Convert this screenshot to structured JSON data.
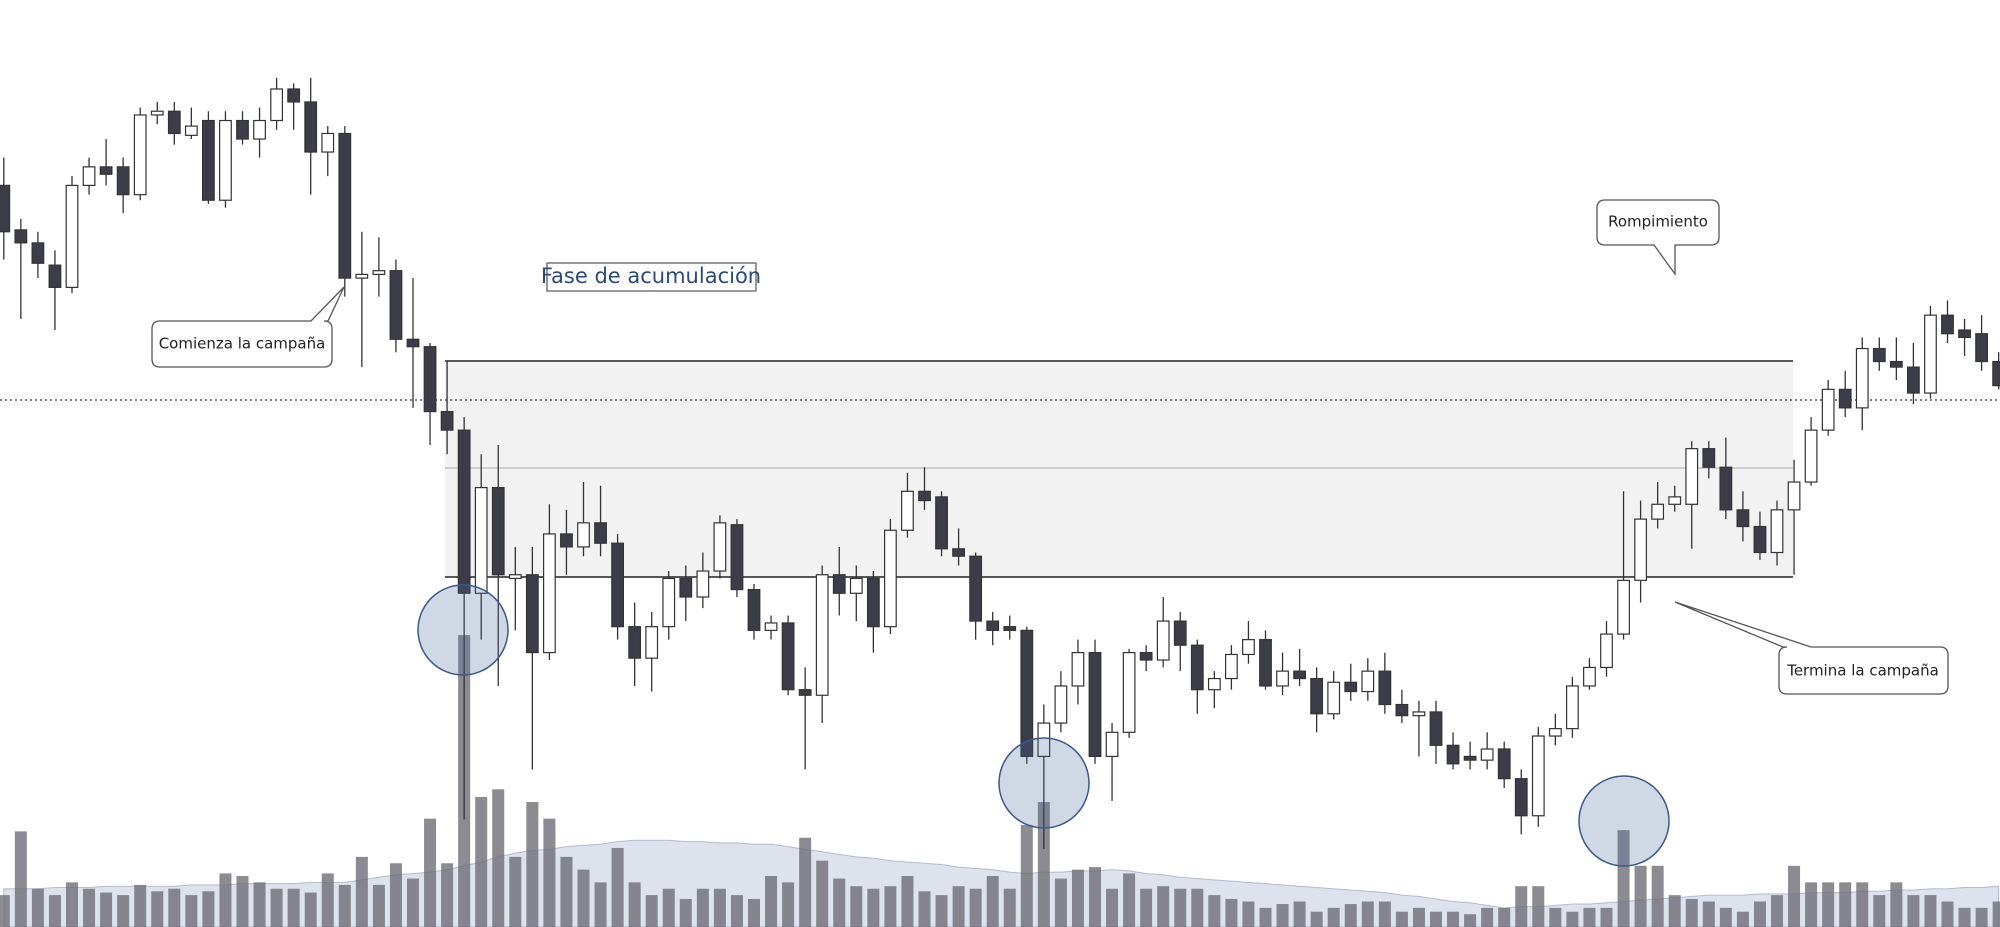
{
  "chart_data": {
    "type": "candlestick",
    "ylim": [
      0,
      500
    ],
    "volume_ylim": [
      0,
      300
    ],
    "annotations": [
      "Comienza la campaña",
      "Fase de acumulación",
      "Rompimiento",
      "Termina la campaña"
    ],
    "open": [
      400,
      376,
      369,
      357,
      345,
      400,
      410,
      410,
      395,
      438,
      440,
      427,
      435,
      392,
      435,
      425,
      435,
      452,
      445,
      418,
      428,
      350,
      352,
      354,
      317,
      313,
      278,
      268,
      180,
      237,
      188,
      190,
      148,
      212,
      205,
      218,
      207,
      162,
      145,
      162,
      188,
      178,
      192,
      217,
      182,
      160,
      164,
      128,
      125,
      190,
      180,
      188,
      162,
      214,
      235,
      232,
      204,
      200,
      165,
      162,
      160,
      92,
      110,
      130,
      148,
      92,
      105,
      148,
      144,
      165,
      152,
      128,
      134,
      147,
      155,
      130,
      138,
      134,
      115,
      132,
      127,
      138,
      120,
      114,
      116,
      98,
      92,
      90,
      96,
      80,
      60,
      103,
      107,
      130,
      140,
      158,
      187,
      220,
      228,
      228,
      258,
      248,
      225,
      216,
      202,
      225,
      240,
      268,
      290,
      280,
      312,
      305,
      302,
      288,
      330,
      322,
      320,
      305
    ],
    "high": [
      415,
      382,
      375,
      365,
      405,
      415,
      425,
      415,
      442,
      445,
      445,
      442,
      440,
      440,
      440,
      442,
      458,
      455,
      458,
      432,
      432,
      375,
      372,
      360,
      350,
      315,
      305,
      275,
      255,
      260,
      205,
      205,
      228,
      225,
      240,
      238,
      212,
      175,
      170,
      192,
      195,
      202,
      222,
      220,
      185,
      168,
      168,
      140,
      195,
      205,
      195,
      192,
      220,
      245,
      248,
      235,
      215,
      202,
      170,
      168,
      162,
      120,
      138,
      155,
      155,
      110,
      150,
      152,
      178,
      170,
      155,
      138,
      152,
      165,
      160,
      148,
      150,
      140,
      138,
      142,
      145,
      148,
      128,
      122,
      122,
      105,
      100,
      105,
      100,
      85,
      108,
      115,
      135,
      145,
      165,
      235,
      230,
      240,
      238,
      262,
      262,
      264,
      235,
      224,
      230,
      252,
      275,
      295,
      300,
      318,
      318,
      318,
      315,
      335,
      338,
      328,
      330,
      310
    ],
    "low": [
      360,
      328,
      350,
      322,
      342,
      395,
      400,
      385,
      392,
      433,
      422,
      425,
      390,
      388,
      422,
      415,
      430,
      430,
      395,
      405,
      340,
      302,
      340,
      310,
      280,
      260,
      255,
      58,
      155,
      130,
      160,
      85,
      144,
      190,
      200,
      200,
      155,
      130,
      127,
      155,
      165,
      172,
      188,
      178,
      155,
      155,
      125,
      85,
      110,
      168,
      165,
      148,
      158,
      210,
      225,
      200,
      195,
      155,
      152,
      155,
      88,
      42,
      105,
      120,
      88,
      68,
      102,
      138,
      140,
      138,
      115,
      118,
      128,
      142,
      128,
      125,
      130,
      105,
      112,
      122,
      122,
      115,
      110,
      92,
      88,
      85,
      85,
      85,
      75,
      50,
      54,
      98,
      102,
      128,
      135,
      155,
      175,
      215,
      224,
      204,
      242,
      220,
      208,
      198,
      195,
      190,
      238,
      265,
      275,
      268,
      300,
      295,
      282,
      285,
      315,
      308,
      300,
      290
    ],
    "close": [
      375,
      369,
      358,
      345,
      400,
      410,
      406,
      395,
      438,
      440,
      428,
      432,
      392,
      435,
      425,
      435,
      452,
      445,
      418,
      428,
      350,
      352,
      354,
      317,
      313,
      278,
      268,
      180,
      237,
      190,
      190,
      148,
      212,
      205,
      218,
      207,
      162,
      145,
      162,
      188,
      178,
      192,
      218,
      182,
      160,
      164,
      128,
      125,
      190,
      180,
      188,
      162,
      214,
      235,
      230,
      204,
      200,
      165,
      160,
      160,
      92,
      110,
      130,
      148,
      92,
      105,
      148,
      144,
      165,
      152,
      128,
      134,
      147,
      155,
      130,
      138,
      134,
      115,
      132,
      127,
      138,
      120,
      114,
      116,
      98,
      88,
      90,
      96,
      80,
      60,
      103,
      107,
      130,
      140,
      158,
      187,
      220,
      228,
      232,
      258,
      248,
      225,
      216,
      202,
      225,
      240,
      268,
      290,
      280,
      312,
      305,
      302,
      288,
      330,
      320,
      318,
      305,
      292
    ],
    "volume": [
      25,
      75,
      30,
      25,
      35,
      30,
      27,
      25,
      33,
      28,
      30,
      25,
      28,
      42,
      40,
      35,
      30,
      30,
      27,
      42,
      33,
      55,
      33,
      50,
      38,
      85,
      50,
      229,
      102,
      108,
      55,
      98,
      85,
      55,
      45,
      35,
      62,
      35,
      25,
      30,
      22,
      30,
      30,
      25,
      22,
      40,
      35,
      70,
      52,
      38,
      32,
      30,
      32,
      40,
      28,
      25,
      32,
      30,
      40,
      30,
      80,
      98,
      38,
      45,
      47,
      30,
      42,
      30,
      32,
      30,
      30,
      25,
      22,
      20,
      15,
      18,
      20,
      12,
      15,
      18,
      20,
      20,
      12,
      15,
      12,
      12,
      10,
      15,
      15,
      32,
      32,
      15,
      12,
      15,
      15,
      76,
      48,
      48,
      25,
      22,
      20,
      15,
      12,
      20,
      25,
      48,
      35,
      35,
      35,
      35,
      25,
      35,
      25,
      25,
      20,
      15,
      15,
      20
    ],
    "volume_ma": [
      30,
      30,
      30,
      31,
      31,
      31,
      32,
      32,
      32,
      32,
      32,
      33,
      33,
      33,
      34,
      34,
      34,
      34,
      35,
      35,
      35,
      37,
      39,
      41,
      42,
      43,
      45,
      48,
      51,
      55,
      58,
      60,
      61,
      63,
      64,
      65,
      67,
      68,
      68,
      68,
      67,
      67,
      66,
      66,
      65,
      65,
      63,
      61,
      59,
      57,
      55,
      54,
      52,
      51,
      50,
      49,
      47,
      46,
      45,
      43,
      42,
      43,
      43,
      44,
      44,
      45,
      44,
      42,
      41,
      39,
      38,
      37,
      36,
      35,
      34,
      33,
      32,
      31,
      30,
      29,
      28,
      27,
      25,
      24,
      22,
      20,
      19,
      17,
      15,
      16,
      16,
      17,
      18,
      18,
      19,
      20,
      21,
      22,
      23,
      24,
      25,
      25,
      25,
      26,
      26,
      26,
      27,
      27,
      27,
      28,
      28,
      29,
      29,
      30,
      30,
      31,
      31,
      32
    ]
  }
}
